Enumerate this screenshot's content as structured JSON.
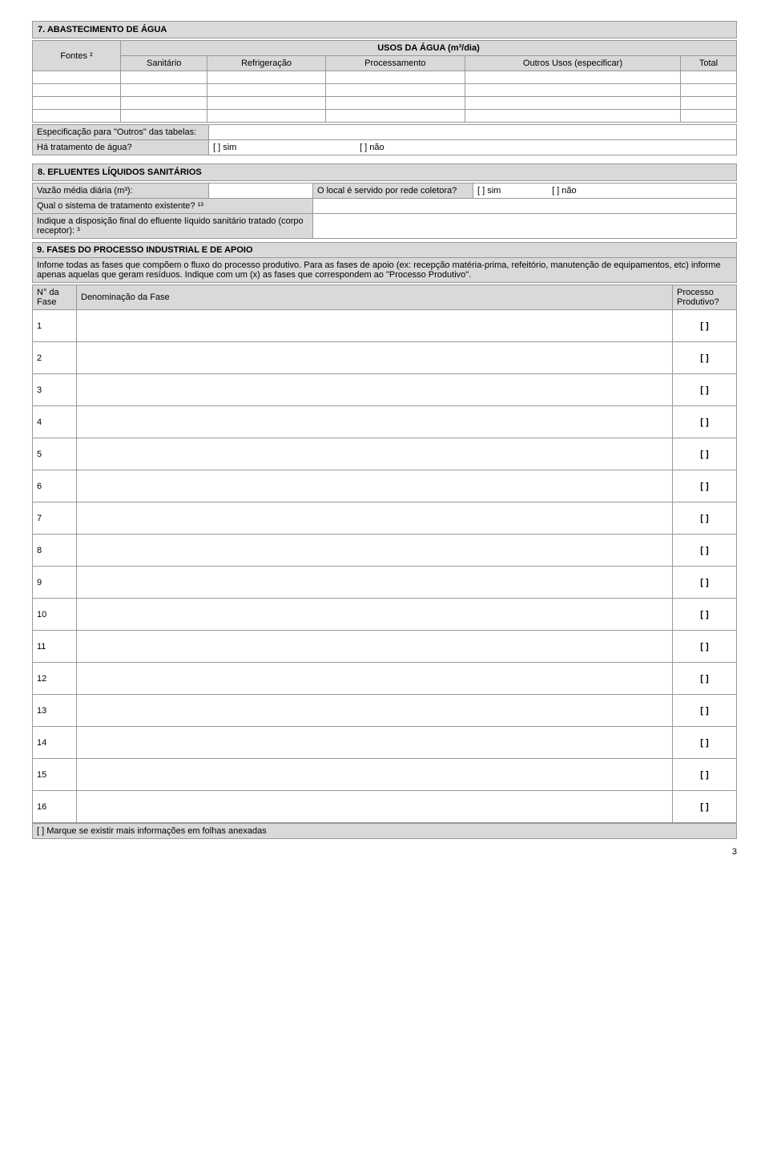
{
  "s7": {
    "title": "7. ABASTECIMENTO DE ÁGUA",
    "fontes": "Fontes ²",
    "usos_header": "USOS DA ÁGUA (m³/dia)",
    "cols": {
      "sanitario": "Sanitário",
      "refrig": "Refrigeração",
      "process": "Processamento",
      "outros": "Outros Usos (especificar)",
      "total": "Total"
    },
    "espec_outros": "Especificação para \"Outros\" das tabelas:",
    "tratamento": "Há tratamento de água?",
    "sim": "[ ]  sim",
    "nao": "[ ]  não"
  },
  "s8": {
    "title": "8. EFLUENTES LÍQUIDOS SANITÁRIOS",
    "vazao": "Vazão média diária (m³):",
    "local_servido": "O local é servido por rede coletora?",
    "sim": "[ ] sim",
    "nao": "[ ] não",
    "sistema": "Qual o sistema de tratamento existente? ¹³",
    "disposicao": "Indique a disposição final do efluente líquido sanitário tratado (corpo receptor): ³"
  },
  "s9": {
    "title": "9. FASES DO PROCESSO INDUSTRIAL E DE APOIO",
    "desc": "Infome todas as fases que compõem o fluxo do processo produtivo. Para as fases de apoio (ex: recepção matéria-prima, refeitório, manutenção de equipamentos, etc) informe apenas aquelas que geram resíduos. Indique com um (x) as fases que correspondem ao \"Processo Produtivo\".",
    "col_num": "N° da Fase",
    "col_denom": "Denominação da Fase",
    "col_proc": "Processo Produtivo?",
    "checkbox": "[ ]",
    "rows": [
      "1",
      "2",
      "3",
      "4",
      "5",
      "6",
      "7",
      "8",
      "9",
      "10",
      "11",
      "12",
      "13",
      "14",
      "15",
      "16"
    ],
    "footer": "[ ]   Marque se existir mais informações em folhas anexadas"
  },
  "pagenum": "3"
}
